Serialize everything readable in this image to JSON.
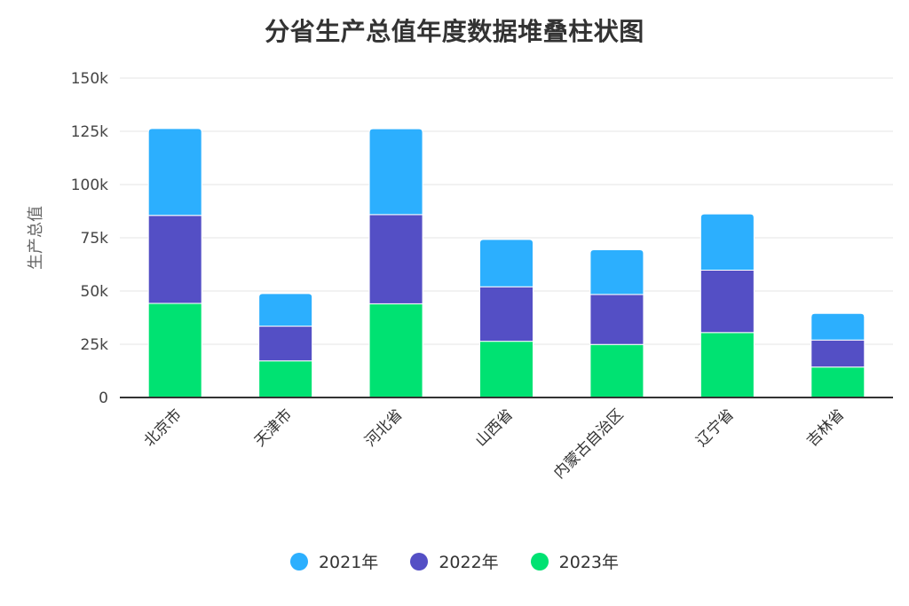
{
  "title": "分省生产总值年度数据堆叠柱状图",
  "chart_data": {
    "type": "bar",
    "stacked": true,
    "title": "分省生产总值年度数据堆叠柱状图",
    "xlabel": "",
    "ylabel": "生产总值",
    "ylim": [
      0,
      150000
    ],
    "yticks": [
      0,
      25000,
      50000,
      75000,
      100000,
      125000,
      150000
    ],
    "ytick_labels": [
      "0",
      "25k",
      "50k",
      "75k",
      "100k",
      "125k",
      "150k"
    ],
    "grid": true,
    "legend_position": "bottom",
    "categories": [
      "北京市",
      "天津市",
      "河北省",
      "山西省",
      "内蒙古自治区",
      "辽宁省",
      "吉林省"
    ],
    "series": [
      {
        "name": "2021年",
        "color": "#2CAFFE",
        "values": [
          40800,
          15300,
          40300,
          22200,
          21000,
          26400,
          12500
        ]
      },
      {
        "name": "2022年",
        "color": "#544FC5",
        "values": [
          41300,
          16300,
          41900,
          25600,
          23500,
          29300,
          12700
        ]
      },
      {
        "name": "2023年",
        "color": "#00E272",
        "values": [
          44200,
          17200,
          44000,
          26400,
          24900,
          30500,
          14300
        ]
      }
    ],
    "totals": [
      126300,
      48800,
      126200,
      74200,
      69400,
      86200,
      39500
    ]
  },
  "legend": {
    "items": [
      {
        "label": "2021年",
        "color": "#2CAFFE"
      },
      {
        "label": "2022年",
        "color": "#544FC5"
      },
      {
        "label": "2023年",
        "color": "#00E272"
      }
    ]
  }
}
